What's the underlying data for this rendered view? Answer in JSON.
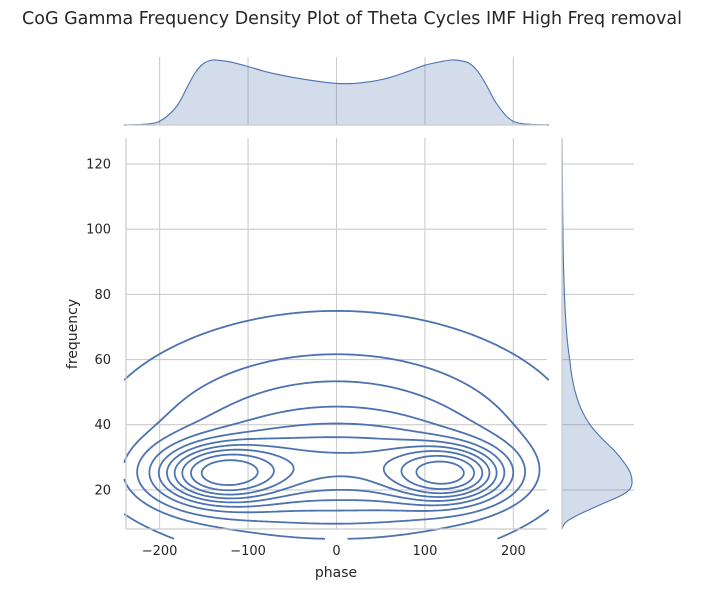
{
  "chart_data": {
    "type": "kde2d_joint",
    "title": "CoG Gamma Frequency Density Plot of Theta Cycles IMF High Freq removal",
    "xlabel": "phase",
    "ylabel": "frequency",
    "xlim": [
      -238,
      238
    ],
    "ylim": [
      8,
      128
    ],
    "xticks": [
      -200,
      -100,
      0,
      100,
      200
    ],
    "xtick_labels": [
      "−200",
      "−100",
      "0",
      "100",
      "200"
    ],
    "yticks": [
      20,
      40,
      60,
      80,
      100,
      120
    ],
    "ytick_labels": [
      "20",
      "40",
      "60",
      "80",
      "100",
      "120"
    ],
    "grid": true,
    "color": "#4c72b0",
    "contour_levels": 10,
    "density_modes": [
      {
        "phase": -130,
        "frequency": 25
      },
      {
        "phase": 125,
        "frequency": 25
      }
    ],
    "marginal_x": {
      "x": [
        -240,
        -210,
        -195,
        -180,
        -170,
        -160,
        -150,
        -140,
        -130,
        -120,
        -100,
        -80,
        -60,
        -40,
        -20,
        0,
        20,
        40,
        60,
        80,
        100,
        120,
        130,
        140,
        150,
        160,
        170,
        180,
        195,
        210,
        240
      ],
      "density": [
        0.0,
        0.02,
        0.1,
        0.3,
        0.55,
        0.8,
        0.95,
        1.0,
        0.99,
        0.97,
        0.9,
        0.82,
        0.76,
        0.71,
        0.67,
        0.64,
        0.64,
        0.67,
        0.73,
        0.82,
        0.92,
        0.98,
        1.0,
        0.99,
        0.95,
        0.82,
        0.6,
        0.35,
        0.1,
        0.02,
        0.0
      ]
    },
    "marginal_y": {
      "y": [
        8,
        10,
        12,
        15,
        18,
        20,
        22,
        25,
        28,
        32,
        36,
        40,
        45,
        50,
        55,
        60,
        65,
        70,
        75,
        80,
        85,
        90,
        95,
        100,
        105,
        110,
        115,
        120,
        124,
        128
      ],
      "density": [
        0.0,
        0.05,
        0.2,
        0.5,
        0.82,
        0.96,
        1.0,
        0.98,
        0.9,
        0.75,
        0.56,
        0.4,
        0.27,
        0.19,
        0.14,
        0.11,
        0.08,
        0.06,
        0.045,
        0.035,
        0.027,
        0.02,
        0.016,
        0.013,
        0.01,
        0.008,
        0.006,
        0.004,
        0.002,
        0.0
      ]
    }
  }
}
